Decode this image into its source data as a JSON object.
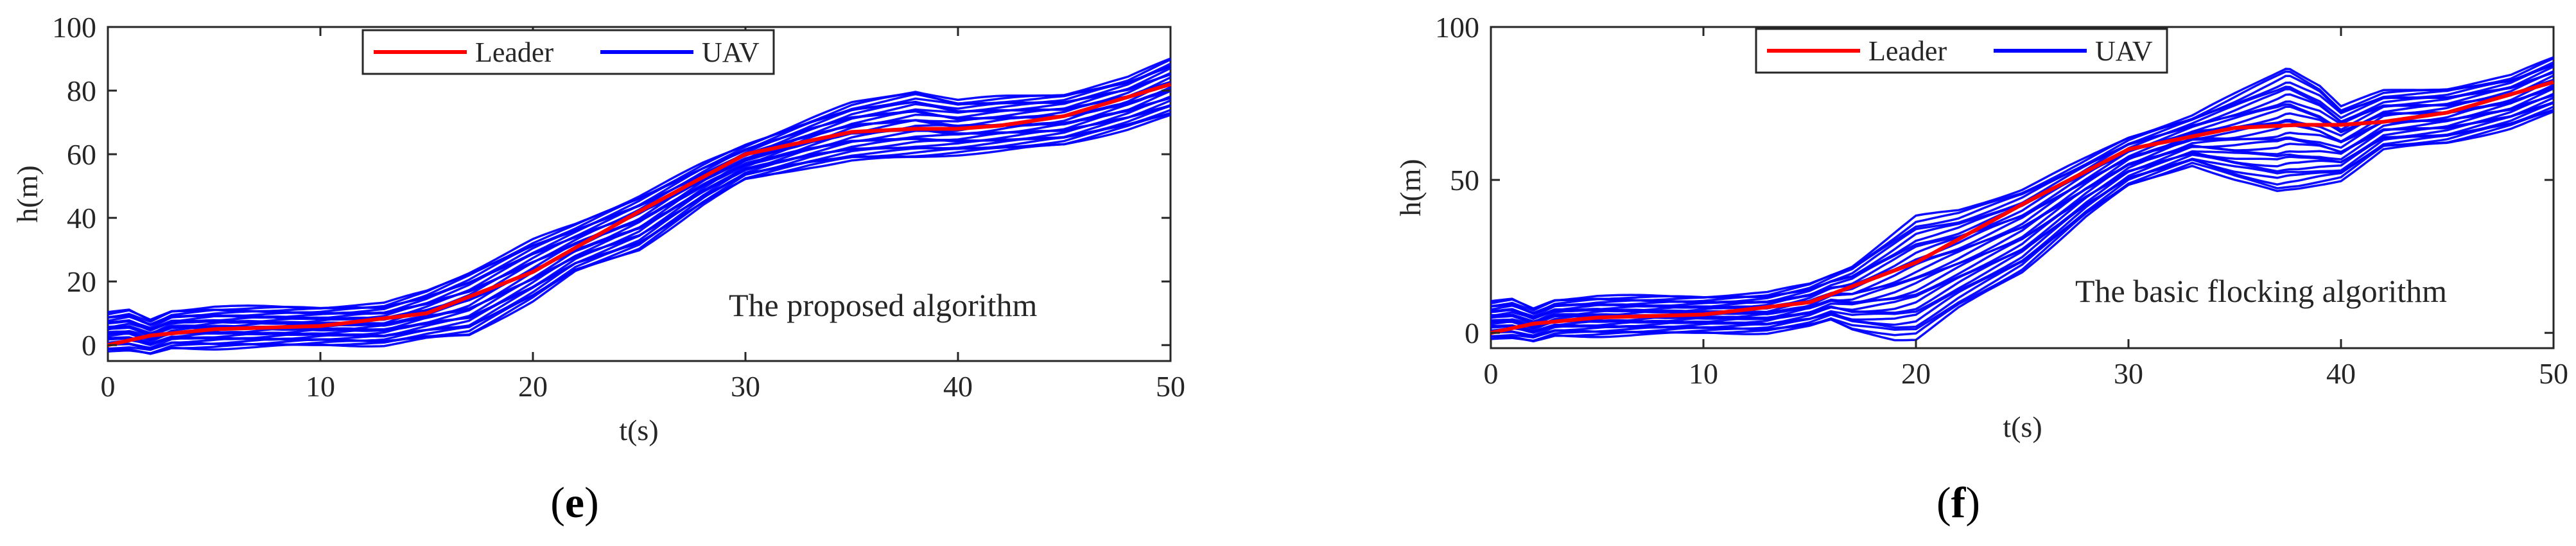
{
  "chart_data": [
    {
      "type": "line",
      "annotation": "The proposed algorithm",
      "panel_label": "e",
      "xlabel": "t(s)",
      "ylabel": "h(m)",
      "xlim": [
        0,
        50
      ],
      "ylim": [
        -5,
        100
      ],
      "x_ticks": [
        0,
        10,
        20,
        30,
        40,
        50
      ],
      "y_ticks": [
        0,
        20,
        40,
        60,
        80,
        100
      ],
      "legend": {
        "position": "top-left",
        "entries": [
          "Leader",
          "UAV"
        ]
      },
      "series": [
        {
          "name": "Leader",
          "color": "#ff0000",
          "x": [
            0,
            2,
            5,
            10,
            15,
            20,
            25,
            30,
            35,
            38,
            40,
            42,
            45,
            50
          ],
          "y": [
            0,
            3,
            5,
            6,
            10,
            23,
            42,
            60,
            67,
            68,
            68,
            69,
            72,
            82
          ]
        },
        {
          "name": "UAV",
          "color": "#0000ff",
          "band_upper": {
            "x": [
              0,
              1,
              2,
              3,
              5,
              10,
              13,
              15,
              17,
              20,
              22,
              25,
              28,
              30,
              33,
              35,
              38,
              40,
              42,
              45,
              48,
              50
            ],
            "y": [
              10,
              11,
              8,
              11,
              12,
              12,
              13,
              17,
              23,
              33,
              38,
              47,
              57,
              63,
              71,
              76,
              80,
              77,
              78,
              79,
              84,
              90
            ]
          },
          "band_lower": {
            "x": [
              0,
              1,
              2,
              3,
              5,
              10,
              13,
              15,
              17,
              20,
              22,
              25,
              28,
              30,
              33,
              35,
              38,
              40,
              42,
              45,
              48,
              50
            ],
            "y": [
              -2,
              -2,
              -3,
              -1,
              -1,
              0,
              0,
              2,
              3,
              14,
              23,
              30,
              44,
              52,
              56,
              58,
              59,
              60,
              61,
              63,
              68,
              72
            ]
          },
          "line_count": 28
        }
      ]
    },
    {
      "type": "line",
      "annotation": "The basic flocking algorithm",
      "panel_label": "f",
      "xlabel": "t(s)",
      "ylabel": "h(m)",
      "xlim": [
        0,
        50
      ],
      "ylim": [
        -5,
        100
      ],
      "x_ticks": [
        0,
        10,
        20,
        30,
        40,
        50
      ],
      "y_ticks": [
        0,
        50,
        100
      ],
      "legend": {
        "position": "top-left",
        "entries": [
          "Leader",
          "UAV"
        ]
      },
      "series": [
        {
          "name": "Leader",
          "color": "#ff0000",
          "x": [
            0,
            2,
            5,
            10,
            15,
            20,
            25,
            30,
            35,
            38,
            40,
            42,
            45,
            50
          ],
          "y": [
            0,
            3,
            5,
            6,
            10,
            23,
            42,
            60,
            67,
            68,
            68,
            69,
            72,
            82
          ]
        },
        {
          "name": "UAV",
          "color": "#0000ff",
          "band_upper": {
            "x": [
              0,
              1,
              2,
              3,
              5,
              10,
              13,
              15,
              17,
              20,
              22,
              25,
              28,
              30,
              33,
              35,
              37.5,
              39,
              40,
              42,
              45,
              48,
              50
            ],
            "y": [
              10,
              11,
              8,
              11,
              12,
              12,
              13,
              16,
              22,
              38,
              40,
              47,
              57,
              64,
              71,
              78,
              87,
              81,
              74,
              79,
              80,
              84,
              90
            ]
          },
          "band_lower": {
            "x": [
              0,
              1,
              2,
              3,
              5,
              10,
              13,
              15,
              16,
              17,
              19,
              20,
              22,
              25,
              28,
              30,
              33,
              35,
              37,
              38,
              40,
              42,
              45,
              48,
              50
            ],
            "y": [
              -2,
              -2,
              -3,
              -1,
              -1,
              0,
              0,
              2,
              4,
              1,
              -2,
              -2,
              8,
              20,
              38,
              48,
              55,
              50,
              46,
              47,
              50,
              60,
              62,
              67,
              72
            ]
          },
          "line_count": 28
        }
      ]
    }
  ]
}
